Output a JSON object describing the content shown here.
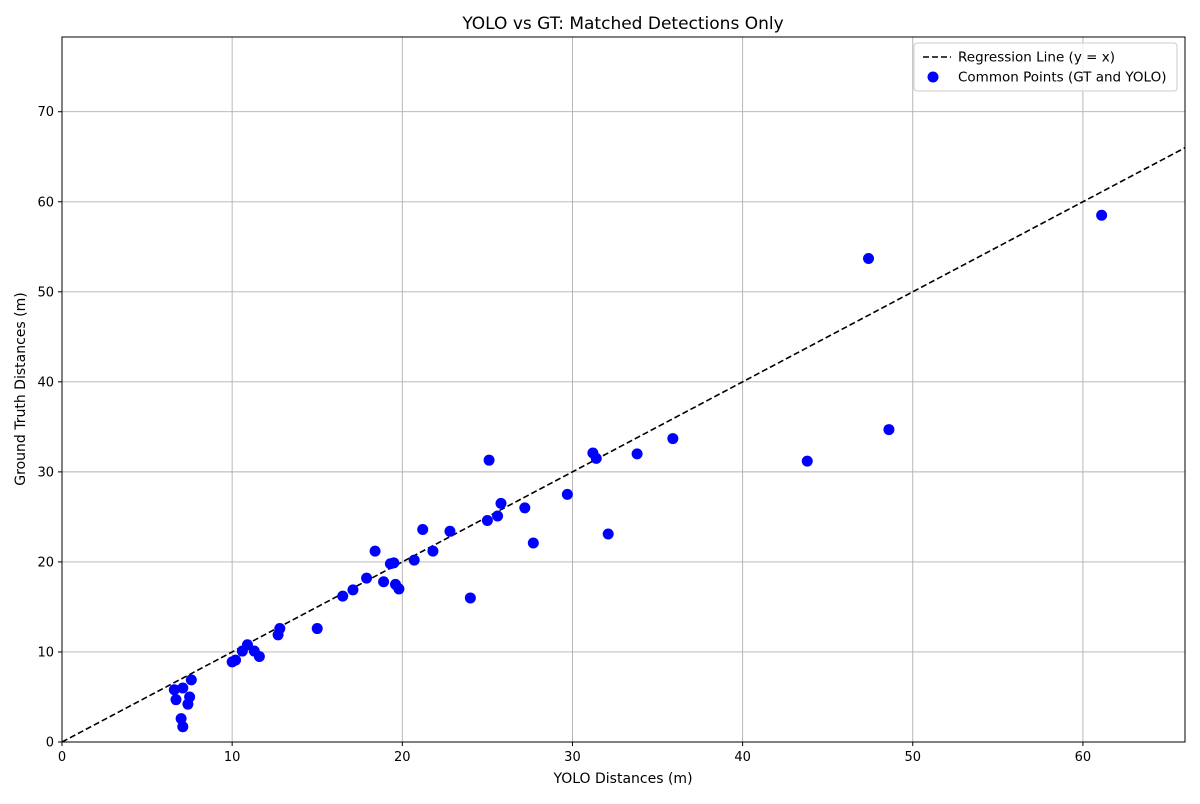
{
  "chart_data": {
    "type": "scatter",
    "title": "YOLO vs GT: Matched Detections Only",
    "xlabel": "YOLO Distances (m)",
    "ylabel": "Ground Truth Distances (m)",
    "xlim": [
      0,
      66
    ],
    "ylim": [
      0,
      78.3
    ],
    "x_ticks": [
      0,
      10,
      20,
      30,
      40,
      50,
      60
    ],
    "y_ticks": [
      0,
      10,
      20,
      30,
      40,
      50,
      60,
      70
    ],
    "grid": true,
    "legend_position": "top-right",
    "colors": {
      "points": "#0000ff",
      "regression": "#000000",
      "grid": "#b0b0b0"
    },
    "series": [
      {
        "name": "Regression Line (y = x)",
        "kind": "line",
        "style": "dashed",
        "x": [
          0,
          66
        ],
        "y": [
          0,
          66
        ]
      },
      {
        "name": "Common Points (GT and YOLO)",
        "kind": "scatter",
        "x": [
          6.6,
          7.1,
          6.7,
          7.5,
          7.4,
          7.6,
          7.0,
          7.1,
          10.0,
          10.2,
          10.6,
          10.9,
          11.3,
          11.6,
          12.7,
          12.8,
          15.0,
          16.5,
          17.1,
          17.9,
          18.4,
          18.9,
          19.3,
          19.5,
          19.6,
          19.8,
          20.7,
          21.2,
          21.8,
          22.8,
          24.0,
          25.0,
          25.1,
          25.6,
          25.8,
          27.2,
          27.7,
          29.7,
          31.2,
          31.4,
          32.1,
          33.8,
          35.9,
          43.8,
          47.4,
          48.6,
          61.1
        ],
        "y": [
          5.8,
          6.0,
          4.7,
          5.0,
          4.2,
          6.9,
          2.6,
          1.7,
          8.9,
          9.1,
          10.1,
          10.8,
          10.1,
          9.5,
          11.9,
          12.6,
          12.6,
          16.2,
          16.9,
          18.2,
          21.2,
          17.8,
          19.8,
          19.9,
          17.5,
          17.0,
          20.2,
          23.6,
          21.2,
          23.4,
          16.0,
          24.6,
          31.3,
          25.1,
          26.5,
          26.0,
          22.1,
          27.5,
          32.1,
          31.5,
          23.1,
          32.0,
          33.7,
          31.2,
          53.7,
          34.7,
          58.5
        ]
      }
    ]
  }
}
